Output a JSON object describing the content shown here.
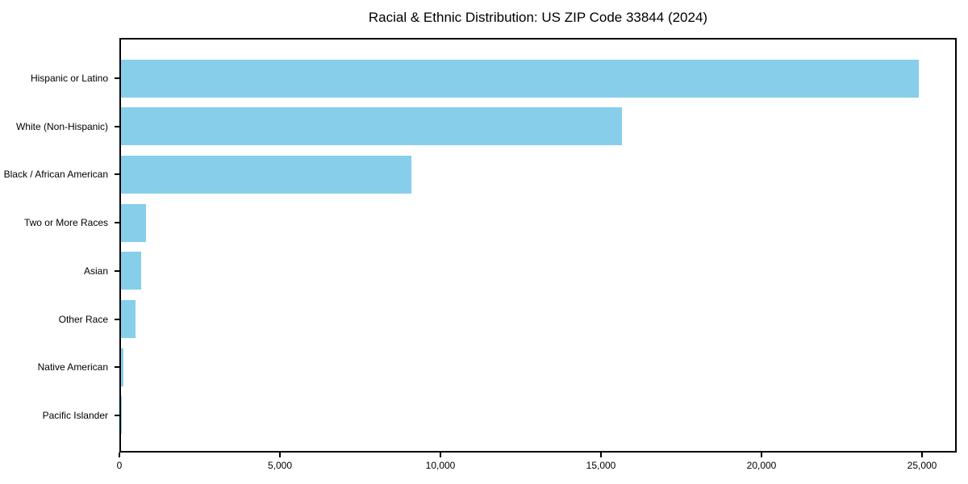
{
  "chart_data": {
    "type": "bar",
    "orientation": "horizontal",
    "title": "Racial & Ethnic Distribution: US ZIP Code 33844 (2024)",
    "categories_top_to_bottom": [
      "Hispanic or Latino",
      "White (Non-Hispanic)",
      "Black / African American",
      "Two or More Races",
      "Asian",
      "Other Race",
      "Native American",
      "Pacific Islander"
    ],
    "values": [
      24850,
      15600,
      9050,
      790,
      640,
      450,
      80,
      25
    ],
    "xlabel": "",
    "ylabel": "",
    "xlim": [
      0,
      26080
    ],
    "x_ticks": [
      0,
      5000,
      10000,
      15000,
      20000,
      25000
    ],
    "x_tick_labels": [
      "0",
      "5,000",
      "10,000",
      "15,000",
      "20,000",
      "25,000"
    ],
    "bar_color": "#87CEEB",
    "axis_color": "#000000",
    "background_color": "#ffffff",
    "grid": false,
    "legend": "none"
  }
}
